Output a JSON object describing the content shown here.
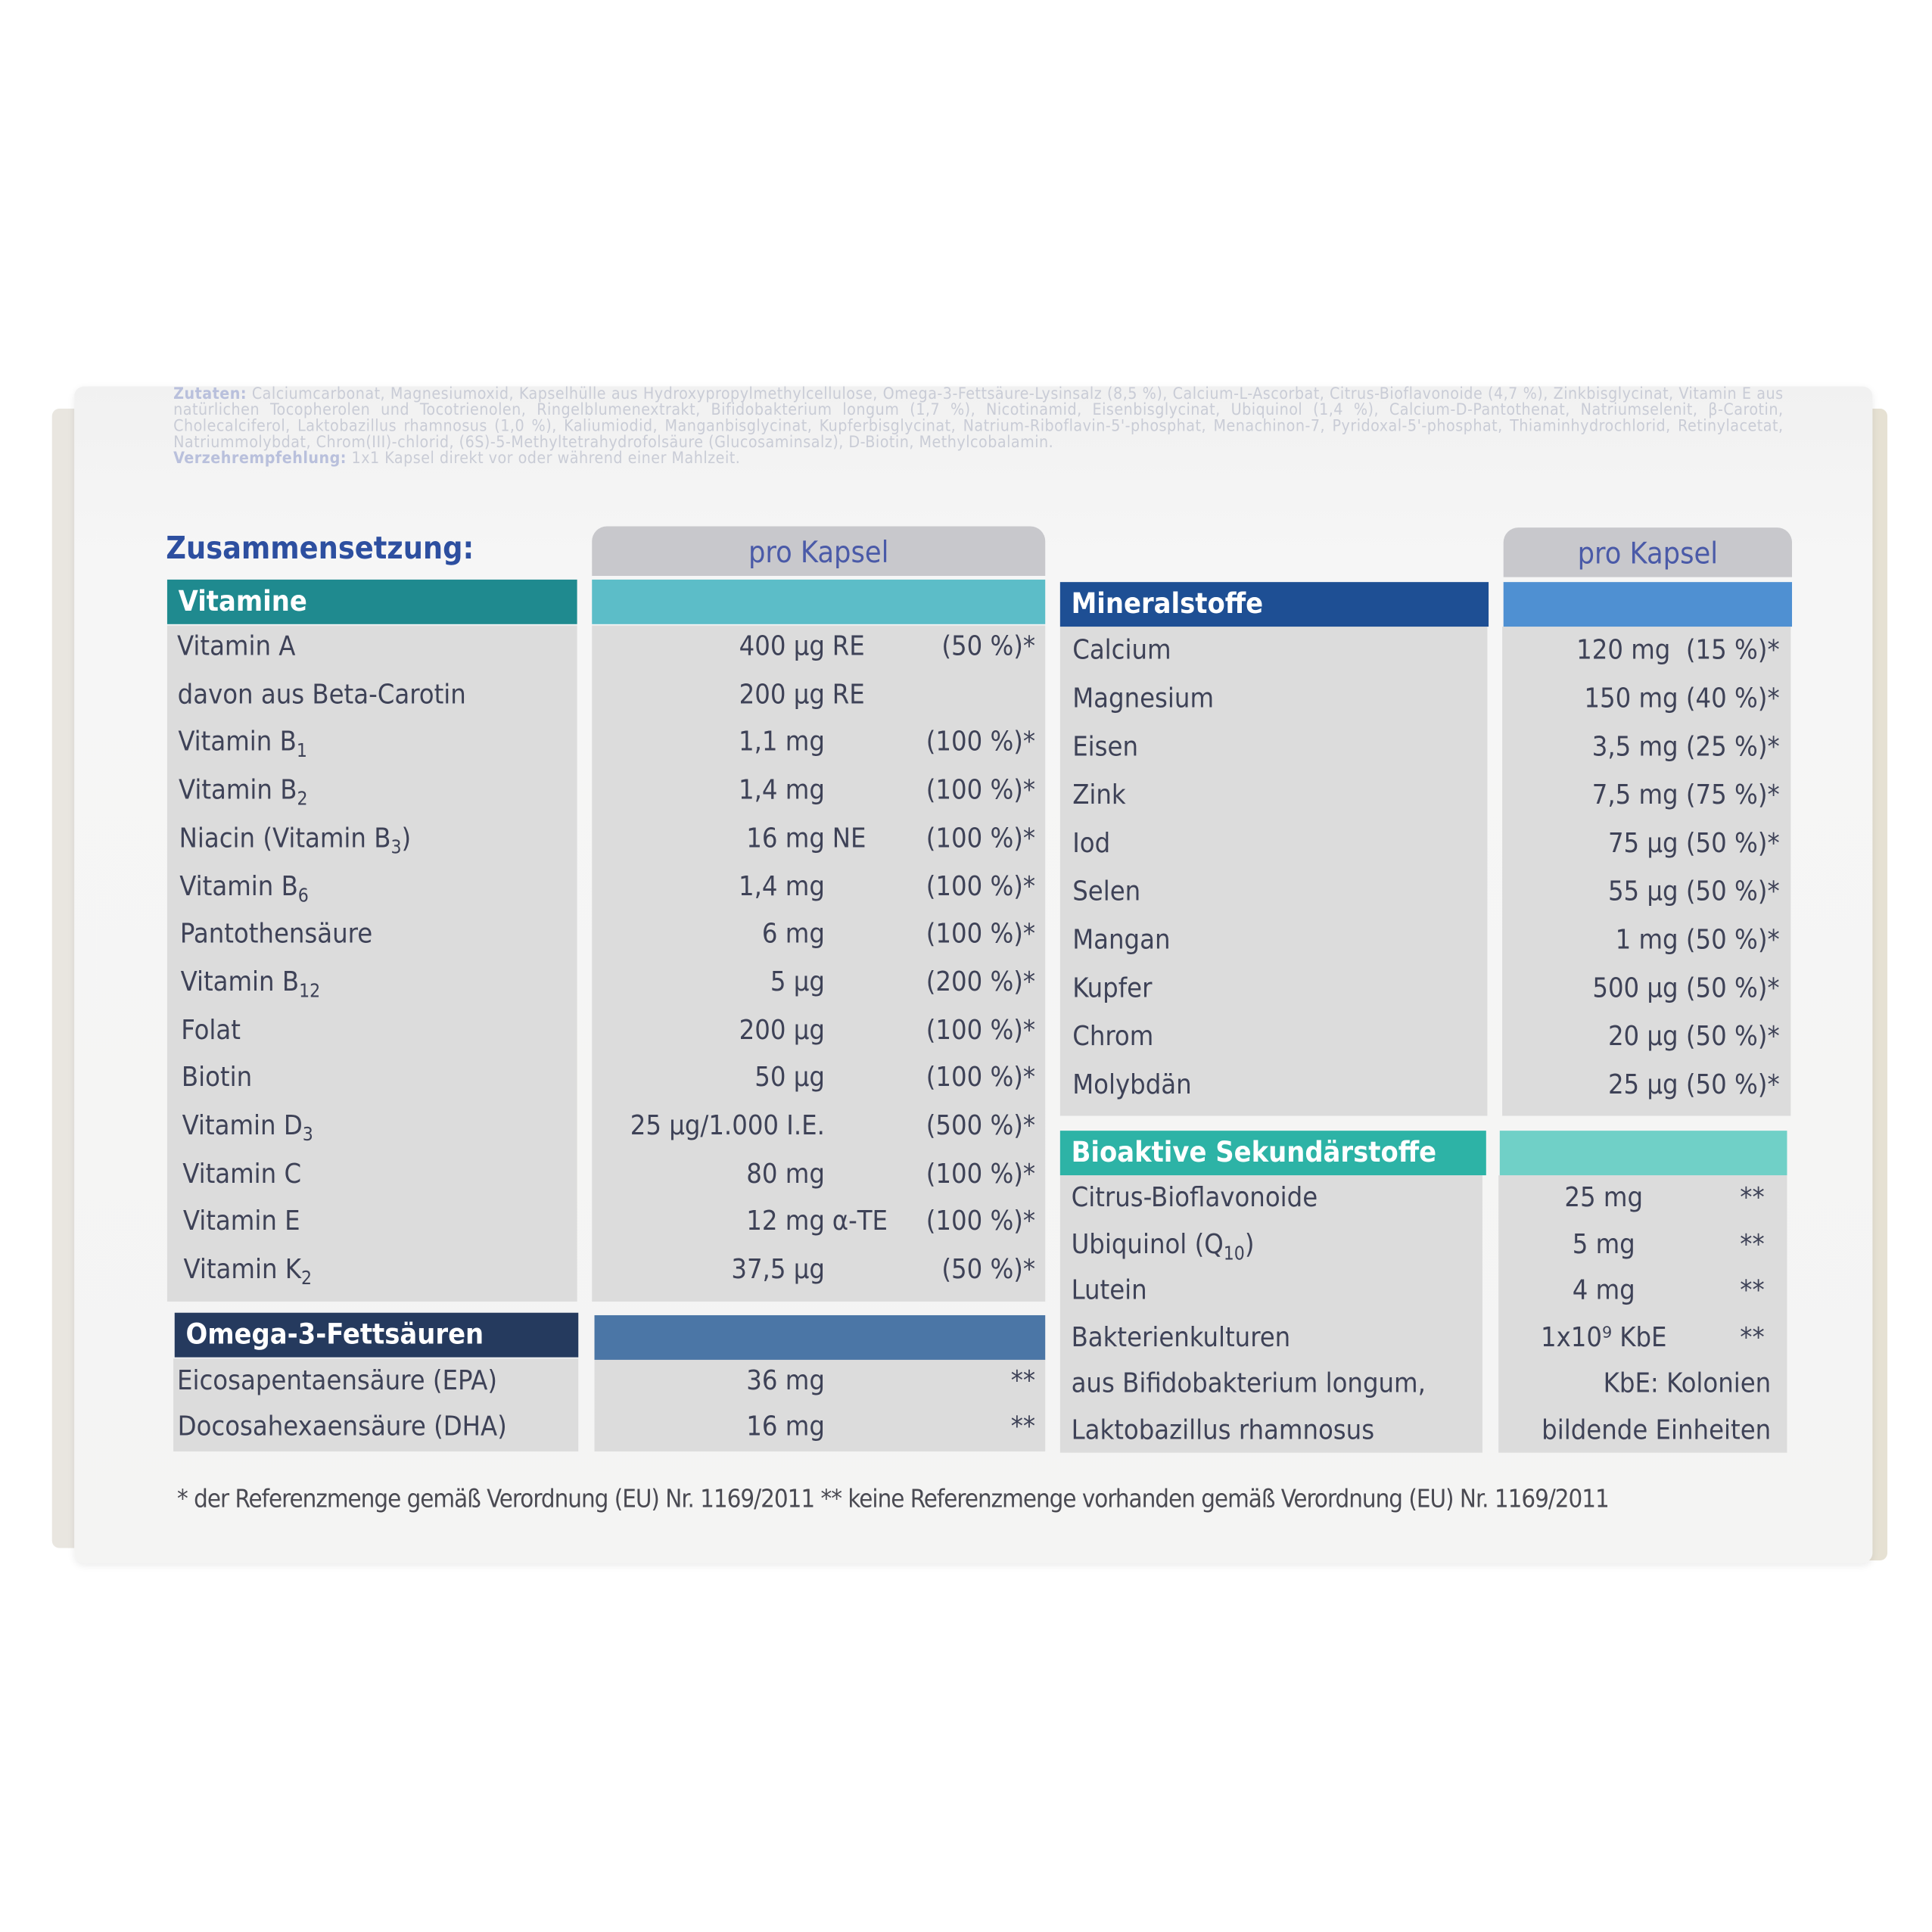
{
  "ingredients_heading": "Zutaten:",
  "ingredients_text": "Calciumcarbonat, Magnesiumoxid, Kapselhülle aus Hydroxypropylmethylcellulose, Omega-3-Fettsäure-Lysinsalz (8,5 %), Calcium-L-Ascorbat, Citrus-Bioflavonoide (4,7 %), Zinkbisglycinat, Vitamin E aus natürlichen Tocopherolen und Tocotrienolen, Ringelblumenextrakt, Bifidobakterium longum (1,7 %), Nicotinamid, Eisenbisglycinat, Ubiquinol (1,4 %), Calcium-D-Pantothenat, Natriumselenit, β-Carotin, Cholecalciferol, Laktobazillus rhamnosus (1,0 %), Kaliumiodid, Manganbisglycinat, Kupferbisglycinat, Natrium-Riboflavin-5'-phosphat, Menachinon-7, Pyridoxal-5'-phosphat, Thiaminhydrochlorid, Retinylacetat, Natriummolybdat, Chrom(III)-chlorid, (6S)-5-Methyltetrahydrofolsäure (Glucosaminsalz), D-Biotin, Methylcobalamin.",
  "dosage_heading": "Verzehrempfehlung:",
  "dosage_text": "1x1 Kapsel direkt vor oder während einer Mahlzeit.",
  "title": "Zusammensetzung:",
  "per_capsule": "pro Kapsel",
  "colors": {
    "vitamine": "#1f8a8f",
    "vitamine_bar": "#5cbdc8",
    "mineral": "#1e4f94",
    "mineral_bar": "#4f90d2",
    "bio": "#2db3a6",
    "bio_bar": "#70d0c7",
    "omega": "#253a5e",
    "omega_bar": "#4b76a6",
    "title": "#2d4fa0"
  },
  "vitamine": {
    "header": "Vitamine",
    "rows": [
      {
        "name": "Vitamin A",
        "sub": "",
        "amount": "400 µg",
        "suffix": "RE",
        "pct": "(50 %)*"
      },
      {
        "name": "davon aus Beta-Carotin",
        "sub": "",
        "amount": "200 µg",
        "suffix": "RE",
        "pct": ""
      },
      {
        "name": "Vitamin B",
        "sub": "1",
        "amount": "1,1 mg",
        "suffix": "",
        "pct": "(100 %)*"
      },
      {
        "name": "Vitamin B",
        "sub": "2",
        "amount": "1,4 mg",
        "suffix": "",
        "pct": "(100 %)*"
      },
      {
        "name": "Niacin (Vitamin B",
        "sub": "3",
        "post": ")",
        "amount": "16 mg",
        "suffix": "NE",
        "pct": "(100 %)*"
      },
      {
        "name": "Vitamin B",
        "sub": "6",
        "amount": "1,4 mg",
        "suffix": "",
        "pct": "(100 %)*"
      },
      {
        "name": "Pantothensäure",
        "sub": "",
        "amount": "6 mg",
        "suffix": "",
        "pct": "(100 %)*"
      },
      {
        "name": "Vitamin B",
        "sub": "12",
        "amount": "5 µg",
        "suffix": "",
        "pct": "(200 %)*"
      },
      {
        "name": "Folat",
        "sub": "",
        "amount": "200 µg",
        "suffix": "",
        "pct": "(100 %)*"
      },
      {
        "name": "Biotin",
        "sub": "",
        "amount": "50 µg",
        "suffix": "",
        "pct": "(100 %)*"
      },
      {
        "name": "Vitamin D",
        "sub": "3",
        "amount": "25 µg/1.000 I.E.",
        "suffix": "",
        "pct": "(500 %)*"
      },
      {
        "name": "Vitamin C",
        "sub": "",
        "amount": "80 mg",
        "suffix": "",
        "pct": "(100 %)*"
      },
      {
        "name": "Vitamin E",
        "sub": "",
        "amount": "12 mg",
        "suffix": "α-TE",
        "pct": "(100 %)*"
      },
      {
        "name": "Vitamin K",
        "sub": "2",
        "amount": "37,5 µg",
        "suffix": "",
        "pct": "(50 %)*"
      }
    ]
  },
  "omega": {
    "header": "Omega-3-Fettsäuren",
    "rows": [
      {
        "name": "Eicosapentaensäure (EPA)",
        "sub": "",
        "amount": "36 mg",
        "suffix": "",
        "pct": "**"
      },
      {
        "name": "Docosahexaensäure (DHA)",
        "sub": "",
        "amount": "16 mg",
        "suffix": "",
        "pct": "**"
      }
    ]
  },
  "mineral": {
    "header": "Mineralstoffe",
    "rows": [
      {
        "name": "Calcium",
        "value": "120 mg  (15 %)*"
      },
      {
        "name": "Magnesium",
        "value": "150 mg (40 %)*"
      },
      {
        "name": "Eisen",
        "value": "3,5 mg (25 %)*"
      },
      {
        "name": "Zink",
        "value": "7,5 mg (75 %)*"
      },
      {
        "name": "Iod",
        "value": "75 µg (50 %)*"
      },
      {
        "name": "Selen",
        "value": "55 µg (50 %)*"
      },
      {
        "name": "Mangan",
        "value": "1 mg (50 %)*"
      },
      {
        "name": "Kupfer",
        "value": "500 µg (50 %)*"
      },
      {
        "name": "Chrom",
        "value": "20 µg (50 %)*"
      },
      {
        "name": "Molybdän",
        "value": "25 µg (50 %)*"
      }
    ]
  },
  "bio": {
    "header": "Bioaktive Sekundärstoffe",
    "rows": [
      {
        "name": "Citrus-Bioflavonoide",
        "sub": "",
        "amount": "25 mg",
        "mark": "**"
      },
      {
        "name": "Ubiquinol (Q",
        "sub": "10",
        "post": ")",
        "amount": "5 mg",
        "mark": "**"
      },
      {
        "name": "Lutein",
        "sub": "",
        "amount": "4 mg",
        "mark": "**"
      },
      {
        "name": "Bakterienkulturen",
        "sub": "",
        "amount": "1x10⁹ KbE",
        "mark": "**"
      },
      {
        "name": "aus Bifidobakterium longum,",
        "sub": "",
        "amount": "KbE: Kolonien",
        "mark": ""
      },
      {
        "name": "Laktobazillus rhamnosus",
        "sub": "",
        "amount": "bildende Einheiten",
        "mark": ""
      }
    ]
  },
  "footnote": "* der Referenzmenge gemäß Verordnung (EU) Nr. 1169/2011  ** keine Referenzmenge vorhanden gemäß Verordnung (EU) Nr. 1169/2011"
}
